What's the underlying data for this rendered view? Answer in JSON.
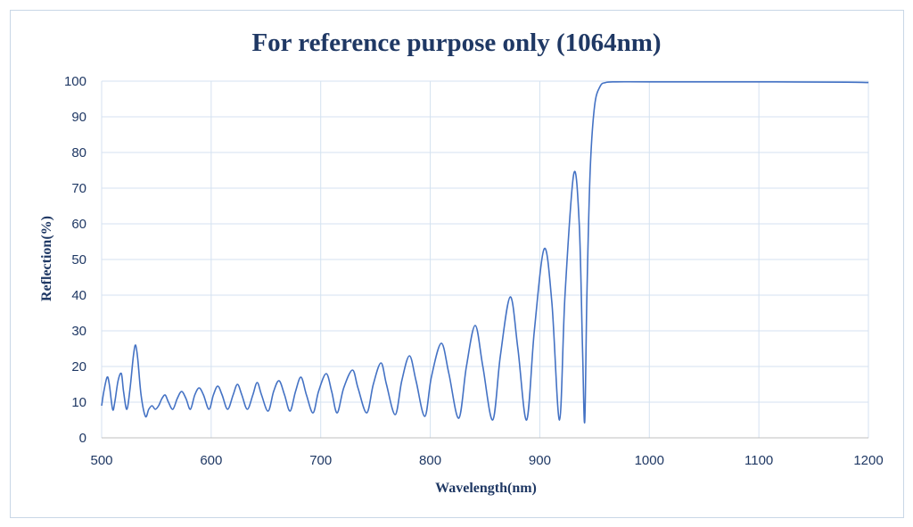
{
  "chart_data": {
    "type": "line",
    "title": "For reference purpose only (1064nm)",
    "xlabel": "Wavelength(nm)",
    "ylabel": "Reflection(%)",
    "xlim": [
      500,
      1200
    ],
    "ylim": [
      0,
      100
    ],
    "x_ticks": [
      500,
      600,
      700,
      800,
      900,
      1000,
      1100,
      1200
    ],
    "y_ticks": [
      0,
      10,
      20,
      30,
      40,
      50,
      60,
      70,
      80,
      90,
      100
    ],
    "grid": true,
    "line_color": "#4472c4",
    "series": [
      {
        "points": [
          [
            500,
            9
          ],
          [
            502,
            13
          ],
          [
            505,
            17
          ],
          [
            507,
            15
          ],
          [
            510,
            8
          ],
          [
            512,
            10
          ],
          [
            515,
            16
          ],
          [
            518,
            18
          ],
          [
            520,
            13
          ],
          [
            523,
            8
          ],
          [
            526,
            14
          ],
          [
            529,
            23
          ],
          [
            531,
            26
          ],
          [
            533,
            22
          ],
          [
            536,
            12
          ],
          [
            540,
            6
          ],
          [
            543,
            8
          ],
          [
            546,
            9
          ],
          [
            549,
            8
          ],
          [
            552,
            9
          ],
          [
            555,
            11
          ],
          [
            558,
            12
          ],
          [
            561,
            10
          ],
          [
            565,
            8
          ],
          [
            569,
            11
          ],
          [
            573,
            13
          ],
          [
            577,
            11
          ],
          [
            581,
            8
          ],
          [
            585,
            12
          ],
          [
            589,
            14
          ],
          [
            593,
            12
          ],
          [
            598,
            8
          ],
          [
            602,
            12
          ],
          [
            606,
            14.5
          ],
          [
            610,
            12
          ],
          [
            615,
            8
          ],
          [
            620,
            12
          ],
          [
            624,
            15
          ],
          [
            628,
            12
          ],
          [
            633,
            8
          ],
          [
            638,
            12
          ],
          [
            642,
            15.5
          ],
          [
            646,
            12
          ],
          [
            652,
            7.5
          ],
          [
            657,
            13
          ],
          [
            662,
            16
          ],
          [
            667,
            12
          ],
          [
            672,
            7.5
          ],
          [
            677,
            13
          ],
          [
            682,
            17
          ],
          [
            687,
            12
          ],
          [
            693,
            7
          ],
          [
            698,
            13
          ],
          [
            705,
            18
          ],
          [
            710,
            13
          ],
          [
            715,
            7
          ],
          [
            721,
            14
          ],
          [
            729,
            19
          ],
          [
            734,
            14
          ],
          [
            742,
            7
          ],
          [
            748,
            15
          ],
          [
            755,
            21
          ],
          [
            760,
            15
          ],
          [
            768,
            6.5
          ],
          [
            774,
            16
          ],
          [
            781,
            23
          ],
          [
            787,
            16
          ],
          [
            795,
            6
          ],
          [
            801,
            17
          ],
          [
            810,
            26.5
          ],
          [
            817,
            18
          ],
          [
            826,
            5.5
          ],
          [
            833,
            20
          ],
          [
            841,
            31.5
          ],
          [
            848,
            20
          ],
          [
            857,
            5
          ],
          [
            864,
            23
          ],
          [
            873,
            39.5
          ],
          [
            880,
            25
          ],
          [
            888,
            5
          ],
          [
            895,
            30
          ],
          [
            904,
            53
          ],
          [
            911,
            38
          ],
          [
            918,
            5
          ],
          [
            923,
            40
          ],
          [
            931,
            74
          ],
          [
            936,
            60
          ],
          [
            939,
            25
          ],
          [
            941,
            4.5
          ],
          [
            943,
            40
          ],
          [
            946,
            75
          ],
          [
            950,
            93
          ],
          [
            955,
            98.5
          ],
          [
            960,
            99.6
          ],
          [
            970,
            99.8
          ],
          [
            1000,
            99.8
          ],
          [
            1100,
            99.8
          ],
          [
            1180,
            99.7
          ],
          [
            1200,
            99.6
          ]
        ]
      }
    ]
  }
}
